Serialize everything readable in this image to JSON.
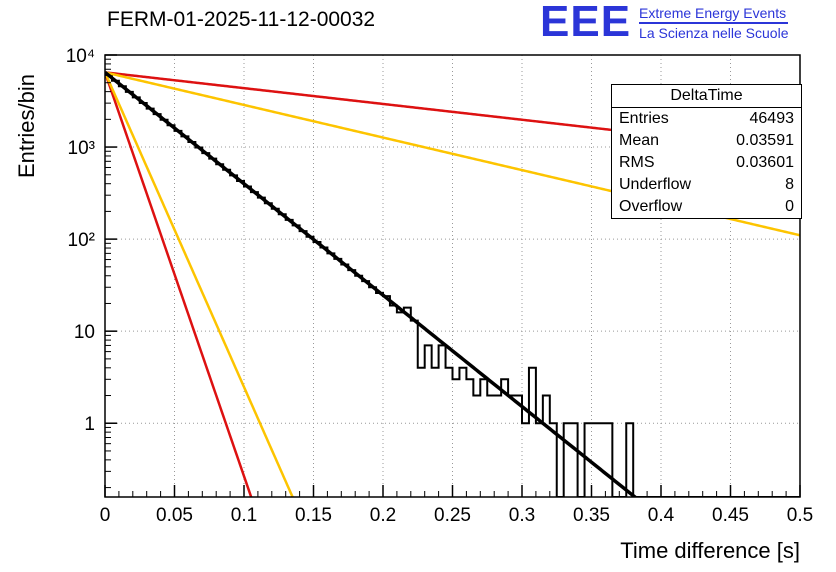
{
  "page": {
    "title": "FERM-01-2025-11-12-00032"
  },
  "logo": {
    "text": "EEE",
    "line1": "Extreme Energy Events",
    "line2": "La Scienza nelle Scuole",
    "color": "#2b35d8"
  },
  "stats": {
    "title": "DeltaTime",
    "rows": [
      {
        "label": "Entries",
        "value": "46493"
      },
      {
        "label": "Mean",
        "value": "0.03591"
      },
      {
        "label": "RMS",
        "value": "0.03601"
      },
      {
        "label": "Underflow",
        "value": "8"
      },
      {
        "label": "Overflow",
        "value": "0"
      }
    ]
  },
  "chart_data": {
    "type": "bar",
    "title": "FERM-01-2025-11-12-00032",
    "xlabel": "Time difference [s]",
    "ylabel": "Entries/bin",
    "xlim": [
      0,
      0.5
    ],
    "ylim": [
      0.158,
      10000
    ],
    "yscale": "log",
    "grid": true,
    "grid_color": "#999999",
    "histogram_color": "#000000",
    "x_minor_step": 0.01,
    "x_ticks": [
      {
        "v": 0,
        "label": "0"
      },
      {
        "v": 0.05,
        "label": "0.05"
      },
      {
        "v": 0.1,
        "label": "0.1"
      },
      {
        "v": 0.15,
        "label": "0.15"
      },
      {
        "v": 0.2,
        "label": "0.2"
      },
      {
        "v": 0.25,
        "label": "0.25"
      },
      {
        "v": 0.3,
        "label": "0.3"
      },
      {
        "v": 0.35,
        "label": "0.35"
      },
      {
        "v": 0.4,
        "label": "0.4"
      },
      {
        "v": 0.45,
        "label": "0.45"
      },
      {
        "v": 0.5,
        "label": "0.5"
      }
    ],
    "y_ticks": [
      {
        "v": 1,
        "label": "1"
      },
      {
        "v": 10,
        "label": "10"
      },
      {
        "v": 100,
        "label": "10²"
      },
      {
        "v": 1000,
        "label": "10³"
      },
      {
        "v": 10000,
        "label": "10⁴"
      }
    ],
    "bins": {
      "start": 0,
      "width": 0.005,
      "values": [
        6041,
        5257,
        4572,
        3978,
        3461,
        3011,
        2619,
        2279,
        1982,
        1725,
        1501,
        1306,
        1136,
        988,
        860,
        748,
        651,
        566,
        493,
        428,
        373,
        324,
        282,
        245,
        214,
        186,
        162,
        141,
        122,
        106,
        93,
        81,
        70,
        61,
        53,
        46,
        40,
        35,
        30,
        26,
        24,
        19,
        16,
        18,
        13,
        4,
        7,
        4,
        7,
        4,
        3,
        4,
        3,
        2,
        3,
        2,
        2,
        3,
        2,
        2,
        1,
        4,
        1,
        2,
        1,
        0,
        1,
        1,
        0,
        1,
        1,
        1,
        1,
        0,
        0,
        1,
        0,
        0,
        0,
        0,
        0,
        0,
        0,
        0,
        0,
        0,
        0,
        0,
        0,
        0,
        0,
        0,
        0,
        0,
        0,
        0,
        0,
        0,
        0,
        0
      ]
    },
    "fit_lines": [
      {
        "name": "red-steep-line",
        "color": "#dd1111",
        "amplitude": 6477,
        "decay_rate_per_s": 101.0,
        "stroke_width": 2.5
      },
      {
        "name": "yellow-steep-line",
        "color": "#fdc400",
        "amplitude": 6477,
        "decay_rate_per_s": 78.7,
        "stroke_width": 2.5
      },
      {
        "name": "red-shallow-line",
        "color": "#dd1111",
        "amplitude": 6477,
        "decay_rate_per_s": 3.95,
        "stroke_width": 2.5
      },
      {
        "name": "yellow-shallow-line",
        "color": "#fdc400",
        "amplitude": 6477,
        "decay_rate_per_s": 8.15,
        "stroke_width": 2.5
      },
      {
        "name": "exponential-fit-line",
        "color": "#000000",
        "amplitude": 6477,
        "decay_rate_per_s": 27.86,
        "stroke_width": 3.5
      }
    ]
  }
}
